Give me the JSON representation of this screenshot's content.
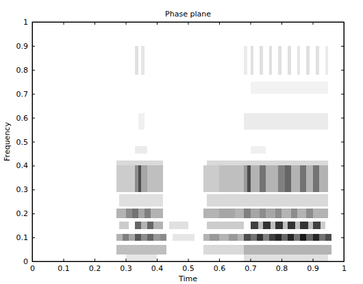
{
  "chart_data": {
    "type": "heatmap",
    "title": "Phase plane",
    "x_label": "Time",
    "y_label": "Frequency",
    "xlim": [
      0,
      1
    ],
    "ylim": [
      0,
      1
    ],
    "xticks": [
      0,
      0.1,
      0.2,
      0.3,
      0.4,
      0.5,
      0.6,
      0.7,
      0.8,
      0.9,
      1
    ],
    "yticks": [
      0,
      0.1,
      0.2,
      0.3,
      0.4,
      0.5,
      0.6,
      0.7,
      0.8,
      0.9,
      1
    ],
    "zlim": [
      0,
      1
    ],
    "color": "#000000",
    "bands": [
      {
        "ylo": 0.0,
        "yhi": 0.03,
        "cells": [
          [
            0.3,
            0.4,
            0.1
          ],
          [
            0.68,
            0.95,
            0.12
          ]
        ]
      },
      {
        "ylo": 0.03,
        "yhi": 0.07,
        "cells": [
          [
            0.27,
            0.43,
            0.25
          ],
          [
            0.55,
            0.68,
            0.15
          ],
          [
            0.68,
            0.96,
            0.3
          ]
        ]
      },
      {
        "ylo": 0.085,
        "yhi": 0.115,
        "cells": [
          [
            0.27,
            0.29,
            0.3
          ],
          [
            0.29,
            0.31,
            0.5
          ],
          [
            0.31,
            0.33,
            0.35
          ],
          [
            0.33,
            0.35,
            0.65
          ],
          [
            0.35,
            0.37,
            0.45
          ],
          [
            0.37,
            0.39,
            0.6
          ],
          [
            0.39,
            0.41,
            0.4
          ],
          [
            0.41,
            0.43,
            0.45
          ],
          [
            0.45,
            0.52,
            0.1
          ],
          [
            0.55,
            0.57,
            0.3
          ],
          [
            0.57,
            0.6,
            0.4
          ],
          [
            0.6,
            0.63,
            0.3
          ],
          [
            0.63,
            0.66,
            0.4
          ],
          [
            0.66,
            0.68,
            0.3
          ],
          [
            0.68,
            0.7,
            0.7
          ],
          [
            0.7,
            0.72,
            0.55
          ],
          [
            0.72,
            0.74,
            0.8
          ],
          [
            0.74,
            0.76,
            0.5
          ],
          [
            0.76,
            0.78,
            0.75
          ],
          [
            0.78,
            0.8,
            0.85
          ],
          [
            0.8,
            0.82,
            0.6
          ],
          [
            0.82,
            0.84,
            0.85
          ],
          [
            0.84,
            0.86,
            0.55
          ],
          [
            0.86,
            0.88,
            0.9
          ],
          [
            0.88,
            0.9,
            0.6
          ],
          [
            0.9,
            0.92,
            0.85
          ],
          [
            0.92,
            0.94,
            0.55
          ],
          [
            0.94,
            0.96,
            0.7
          ]
        ]
      },
      {
        "ylo": 0.135,
        "yhi": 0.165,
        "cells": [
          [
            0.28,
            0.31,
            0.2
          ],
          [
            0.33,
            0.35,
            0.6
          ],
          [
            0.35,
            0.37,
            0.3
          ],
          [
            0.37,
            0.39,
            0.6
          ],
          [
            0.39,
            0.42,
            0.3
          ],
          [
            0.44,
            0.5,
            0.12
          ],
          [
            0.56,
            0.68,
            0.2
          ],
          [
            0.7,
            0.725,
            0.75
          ],
          [
            0.725,
            0.74,
            0.25
          ],
          [
            0.74,
            0.765,
            0.8
          ],
          [
            0.765,
            0.78,
            0.25
          ],
          [
            0.78,
            0.805,
            0.8
          ],
          [
            0.805,
            0.82,
            0.25
          ],
          [
            0.82,
            0.845,
            0.8
          ],
          [
            0.845,
            0.86,
            0.25
          ],
          [
            0.86,
            0.885,
            0.8
          ],
          [
            0.885,
            0.9,
            0.25
          ],
          [
            0.9,
            0.925,
            0.75
          ],
          [
            0.925,
            0.94,
            0.2
          ]
        ]
      },
      {
        "ylo": 0.18,
        "yhi": 0.22,
        "cells": [
          [
            0.27,
            0.3,
            0.3
          ],
          [
            0.3,
            0.32,
            0.45
          ],
          [
            0.32,
            0.34,
            0.55
          ],
          [
            0.34,
            0.36,
            0.35
          ],
          [
            0.36,
            0.38,
            0.5
          ],
          [
            0.38,
            0.42,
            0.3
          ],
          [
            0.55,
            0.6,
            0.3
          ],
          [
            0.6,
            0.65,
            0.35
          ],
          [
            0.65,
            0.68,
            0.3
          ],
          [
            0.68,
            0.7,
            0.5
          ],
          [
            0.7,
            0.73,
            0.35
          ],
          [
            0.73,
            0.75,
            0.45
          ],
          [
            0.75,
            0.78,
            0.35
          ],
          [
            0.78,
            0.8,
            0.45
          ],
          [
            0.8,
            0.83,
            0.3
          ],
          [
            0.83,
            0.85,
            0.45
          ],
          [
            0.85,
            0.88,
            0.3
          ],
          [
            0.88,
            0.9,
            0.45
          ],
          [
            0.9,
            0.95,
            0.3
          ]
        ]
      },
      {
        "ylo": 0.23,
        "yhi": 0.28,
        "cells": [
          [
            0.28,
            0.42,
            0.12
          ],
          [
            0.56,
            0.95,
            0.15
          ]
        ]
      },
      {
        "ylo": 0.29,
        "yhi": 0.4,
        "cells": [
          [
            0.27,
            0.33,
            0.2
          ],
          [
            0.33,
            0.34,
            0.45
          ],
          [
            0.34,
            0.35,
            0.7
          ],
          [
            0.35,
            0.37,
            0.35
          ],
          [
            0.37,
            0.42,
            0.25
          ],
          [
            0.55,
            0.6,
            0.2
          ],
          [
            0.6,
            0.68,
            0.25
          ],
          [
            0.68,
            0.69,
            0.4
          ],
          [
            0.69,
            0.7,
            0.7
          ],
          [
            0.7,
            0.73,
            0.3
          ],
          [
            0.73,
            0.75,
            0.55
          ],
          [
            0.75,
            0.79,
            0.3
          ],
          [
            0.79,
            0.81,
            0.5
          ],
          [
            0.81,
            0.83,
            0.6
          ],
          [
            0.83,
            0.86,
            0.3
          ],
          [
            0.86,
            0.88,
            0.55
          ],
          [
            0.88,
            0.9,
            0.3
          ],
          [
            0.9,
            0.92,
            0.55
          ],
          [
            0.92,
            0.95,
            0.3
          ]
        ]
      },
      {
        "ylo": 0.4,
        "yhi": 0.42,
        "cells": [
          [
            0.27,
            0.42,
            0.15
          ],
          [
            0.56,
            0.95,
            0.15
          ]
        ]
      },
      {
        "ylo": 0.45,
        "yhi": 0.48,
        "cells": [
          [
            0.33,
            0.37,
            0.08
          ],
          [
            0.7,
            0.75,
            0.06
          ]
        ]
      },
      {
        "ylo": 0.55,
        "yhi": 0.62,
        "cells": [
          [
            0.34,
            0.36,
            0.06
          ],
          [
            0.68,
            0.95,
            0.08
          ]
        ]
      },
      {
        "ylo": 0.7,
        "yhi": 0.75,
        "cells": [
          [
            0.7,
            0.95,
            0.05
          ]
        ]
      },
      {
        "ylo": 0.78,
        "yhi": 0.9,
        "cells": [
          [
            0.33,
            0.34,
            0.12
          ],
          [
            0.35,
            0.36,
            0.1
          ],
          [
            0.68,
            0.69,
            0.08
          ],
          [
            0.7,
            0.71,
            0.12
          ],
          [
            0.73,
            0.74,
            0.12
          ],
          [
            0.76,
            0.77,
            0.12
          ],
          [
            0.79,
            0.8,
            0.12
          ],
          [
            0.82,
            0.83,
            0.12
          ],
          [
            0.85,
            0.86,
            0.1
          ],
          [
            0.88,
            0.89,
            0.12
          ],
          [
            0.91,
            0.92,
            0.12
          ],
          [
            0.94,
            0.95,
            0.08
          ]
        ]
      }
    ]
  }
}
